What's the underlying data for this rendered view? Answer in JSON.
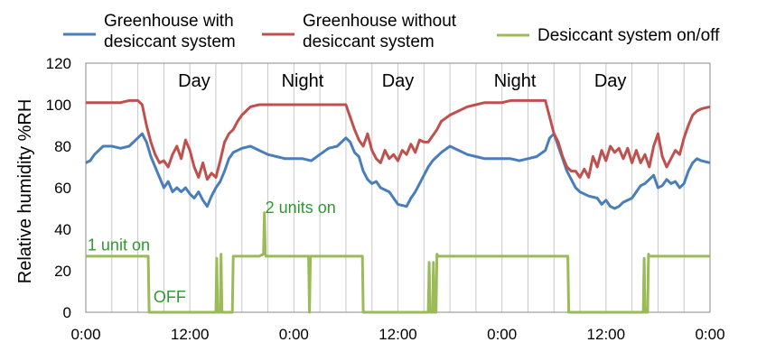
{
  "chart_data": {
    "type": "line",
    "title": "",
    "xlabel": "",
    "ylabel": "Relative humidity  %RH",
    "ylim": [
      0,
      120
    ],
    "yticks": [
      0,
      20,
      40,
      60,
      80,
      100,
      120
    ],
    "xlim_hours": [
      0,
      72
    ],
    "xticks": [
      {
        "h": 0,
        "label": "0:00"
      },
      {
        "h": 12,
        "label": "12:00"
      },
      {
        "h": 24,
        "label": "0:00"
      },
      {
        "h": 36,
        "label": "12:00"
      },
      {
        "h": 48,
        "label": "0:00"
      },
      {
        "h": 60,
        "label": "12:00"
      },
      {
        "h": 72,
        "label": "0:00"
      }
    ],
    "grid": "vertical",
    "legend_position": "top",
    "period_labels": [
      {
        "h": 12.5,
        "label": "Day"
      },
      {
        "h": 25,
        "label": "Night"
      },
      {
        "h": 36,
        "label": "Day"
      },
      {
        "h": 49.5,
        "label": "Night"
      },
      {
        "h": 60.5,
        "label": "Day"
      }
    ],
    "annotations": [
      {
        "text": "1 unit on",
        "h": 0.2,
        "y": 29
      },
      {
        "text": "OFF",
        "h": 7.8,
        "y": 4
      },
      {
        "text": "2 units on",
        "h": 20.7,
        "y": 47
      }
    ],
    "annotation_color": "#2e9a2e",
    "series": [
      {
        "name": "Greenhouse with\ndesiccant system",
        "color": "#4a7ebb",
        "points": [
          [
            0,
            72
          ],
          [
            0.5,
            73
          ],
          [
            1,
            76
          ],
          [
            1.5,
            78
          ],
          [
            2,
            80
          ],
          [
            3,
            80
          ],
          [
            4,
            79
          ],
          [
            5,
            80
          ],
          [
            6,
            84
          ],
          [
            6.5,
            86
          ],
          [
            7,
            82
          ],
          [
            7.5,
            75
          ],
          [
            8,
            70
          ],
          [
            8.5,
            65
          ],
          [
            9,
            60
          ],
          [
            9.5,
            63
          ],
          [
            10,
            58
          ],
          [
            10.5,
            60
          ],
          [
            11,
            58
          ],
          [
            11.5,
            60
          ],
          [
            12,
            57
          ],
          [
            12.5,
            55
          ],
          [
            13,
            58
          ],
          [
            13.5,
            54
          ],
          [
            14,
            51
          ],
          [
            14.5,
            56
          ],
          [
            15,
            60
          ],
          [
            15.5,
            63
          ],
          [
            16,
            68
          ],
          [
            16.5,
            74
          ],
          [
            17,
            77
          ],
          [
            18,
            79
          ],
          [
            19,
            80
          ],
          [
            20,
            78
          ],
          [
            21,
            76
          ],
          [
            22,
            75
          ],
          [
            23,
            74
          ],
          [
            24,
            74
          ],
          [
            25,
            74
          ],
          [
            26,
            73
          ],
          [
            27,
            76
          ],
          [
            28,
            79
          ],
          [
            29,
            80
          ],
          [
            30,
            84
          ],
          [
            30.5,
            82
          ],
          [
            31,
            77
          ],
          [
            31.5,
            75
          ],
          [
            32,
            68
          ],
          [
            32.5,
            64
          ],
          [
            33,
            62
          ],
          [
            33.5,
            63
          ],
          [
            34,
            60
          ],
          [
            35,
            58
          ],
          [
            36,
            52
          ],
          [
            37,
            51
          ],
          [
            37.5,
            55
          ],
          [
            38,
            58
          ],
          [
            38.5,
            62
          ],
          [
            39,
            66
          ],
          [
            39.5,
            70
          ],
          [
            40,
            73
          ],
          [
            40.5,
            75
          ],
          [
            41,
            77
          ],
          [
            42,
            80
          ],
          [
            43,
            78
          ],
          [
            44,
            76
          ],
          [
            45,
            75
          ],
          [
            46,
            74
          ],
          [
            47,
            74
          ],
          [
            48,
            74
          ],
          [
            49,
            74
          ],
          [
            50,
            73
          ],
          [
            51,
            74
          ],
          [
            52,
            75
          ],
          [
            53,
            78
          ],
          [
            53.5,
            84
          ],
          [
            54,
            86
          ],
          [
            54.5,
            80
          ],
          [
            55,
            74
          ],
          [
            55.5,
            68
          ],
          [
            56,
            64
          ],
          [
            56.5,
            60
          ],
          [
            57,
            58
          ],
          [
            58,
            56
          ],
          [
            59,
            55
          ],
          [
            59.5,
            52
          ],
          [
            60,
            54
          ],
          [
            60.5,
            51
          ],
          [
            61,
            50
          ],
          [
            61.5,
            51
          ],
          [
            62,
            53
          ],
          [
            63,
            55
          ],
          [
            63.5,
            58
          ],
          [
            64,
            61
          ],
          [
            64.5,
            62
          ],
          [
            65,
            64
          ],
          [
            65.5,
            66
          ],
          [
            66,
            60
          ],
          [
            66.5,
            61
          ],
          [
            67,
            64
          ],
          [
            67.5,
            62
          ],
          [
            68,
            63
          ],
          [
            68.5,
            60
          ],
          [
            69,
            62
          ],
          [
            69.5,
            68
          ],
          [
            70,
            72
          ],
          [
            70.5,
            74
          ],
          [
            71,
            73
          ],
          [
            72,
            72
          ]
        ]
      },
      {
        "name": "Greenhouse without\ndesiccant system",
        "color": "#c0504d",
        "points": [
          [
            0,
            101
          ],
          [
            1,
            101
          ],
          [
            2,
            101
          ],
          [
            3,
            101
          ],
          [
            4,
            101
          ],
          [
            5,
            102
          ],
          [
            6,
            102
          ],
          [
            6.5,
            100
          ],
          [
            7,
            90
          ],
          [
            7.5,
            82
          ],
          [
            8,
            76
          ],
          [
            8.5,
            72
          ],
          [
            9,
            73
          ],
          [
            9.5,
            70
          ],
          [
            10,
            76
          ],
          [
            10.5,
            80
          ],
          [
            11,
            74
          ],
          [
            11.5,
            83
          ],
          [
            12,
            78
          ],
          [
            12.5,
            70
          ],
          [
            13,
            65
          ],
          [
            13.5,
            72
          ],
          [
            14,
            64
          ],
          [
            14.5,
            67
          ],
          [
            15,
            65
          ],
          [
            15.5,
            73
          ],
          [
            16,
            82
          ],
          [
            16.5,
            86
          ],
          [
            17,
            88
          ],
          [
            17.5,
            92
          ],
          [
            18,
            95
          ],
          [
            18.5,
            97
          ],
          [
            19,
            99
          ],
          [
            20,
            100
          ],
          [
            21,
            100
          ],
          [
            22,
            100
          ],
          [
            23,
            100
          ],
          [
            24,
            100
          ],
          [
            25,
            100
          ],
          [
            26,
            100
          ],
          [
            27,
            100
          ],
          [
            28,
            100
          ],
          [
            29,
            100
          ],
          [
            30,
            100
          ],
          [
            30.5,
            94
          ],
          [
            31,
            88
          ],
          [
            31.5,
            83
          ],
          [
            32,
            80
          ],
          [
            32.5,
            86
          ],
          [
            33,
            78
          ],
          [
            33.5,
            74
          ],
          [
            34,
            72
          ],
          [
            34.5,
            78
          ],
          [
            35,
            74
          ],
          [
            35.5,
            76
          ],
          [
            36,
            73
          ],
          [
            36.5,
            78
          ],
          [
            37,
            76
          ],
          [
            37.5,
            81
          ],
          [
            38,
            77
          ],
          [
            38.5,
            83
          ],
          [
            39,
            82
          ],
          [
            39.5,
            82
          ],
          [
            40,
            85
          ],
          [
            40.5,
            88
          ],
          [
            41,
            92
          ],
          [
            42,
            95
          ],
          [
            43,
            97
          ],
          [
            44,
            99
          ],
          [
            45,
            100
          ],
          [
            46,
            101
          ],
          [
            47,
            101
          ],
          [
            48,
            101
          ],
          [
            49,
            102
          ],
          [
            50,
            102
          ],
          [
            51,
            102
          ],
          [
            52,
            102
          ],
          [
            53,
            102
          ],
          [
            53.5,
            94
          ],
          [
            54,
            86
          ],
          [
            54.5,
            82
          ],
          [
            55,
            75
          ],
          [
            55.5,
            70
          ],
          [
            56,
            68
          ],
          [
            56.5,
            68
          ],
          [
            57,
            65
          ],
          [
            57.5,
            69
          ],
          [
            58,
            65
          ],
          [
            58.5,
            75
          ],
          [
            59,
            70
          ],
          [
            59.5,
            78
          ],
          [
            60,
            73
          ],
          [
            60.5,
            80
          ],
          [
            61,
            77
          ],
          [
            61.5,
            79
          ],
          [
            62,
            74
          ],
          [
            62.5,
            79
          ],
          [
            63,
            72
          ],
          [
            63.5,
            78
          ],
          [
            64,
            72
          ],
          [
            64.5,
            76
          ],
          [
            65,
            70
          ],
          [
            65.5,
            80
          ],
          [
            66,
            86
          ],
          [
            66.5,
            75
          ],
          [
            67,
            70
          ],
          [
            67.5,
            74
          ],
          [
            68,
            78
          ],
          [
            68.5,
            76
          ],
          [
            69,
            84
          ],
          [
            69.5,
            90
          ],
          [
            70,
            95
          ],
          [
            70.5,
            97
          ],
          [
            71,
            98
          ],
          [
            72,
            99
          ]
        ]
      },
      {
        "name": "Desiccant system on/off",
        "color": "#9bbb59",
        "points": [
          [
            0,
            27
          ],
          [
            2,
            27
          ],
          [
            4,
            27
          ],
          [
            6,
            27
          ],
          [
            7.2,
            27
          ],
          [
            7.3,
            0
          ],
          [
            15,
            0
          ],
          [
            15.1,
            26
          ],
          [
            15.2,
            0
          ],
          [
            15.5,
            0
          ],
          [
            15.6,
            28
          ],
          [
            15.7,
            0
          ],
          [
            16.9,
            0
          ],
          [
            17,
            27
          ],
          [
            20,
            27
          ],
          [
            20.5,
            28
          ],
          [
            20.6,
            48
          ],
          [
            20.7,
            28
          ],
          [
            20.8,
            27
          ],
          [
            25,
            27
          ],
          [
            25.7,
            27
          ],
          [
            25.8,
            0
          ],
          [
            25.9,
            27
          ],
          [
            31.9,
            27
          ],
          [
            32,
            0
          ],
          [
            39.5,
            0
          ],
          [
            39.6,
            24
          ],
          [
            39.7,
            0
          ],
          [
            40,
            0
          ],
          [
            40.1,
            24
          ],
          [
            40.2,
            0
          ],
          [
            40.4,
            0
          ],
          [
            40.5,
            28
          ],
          [
            40.6,
            27
          ],
          [
            45,
            27
          ],
          [
            55.6,
            27
          ],
          [
            55.7,
            0
          ],
          [
            64.3,
            0
          ],
          [
            64.4,
            26
          ],
          [
            64.5,
            0
          ],
          [
            64.8,
            0
          ],
          [
            64.9,
            28
          ],
          [
            65,
            27
          ],
          [
            72,
            27
          ]
        ]
      }
    ]
  }
}
